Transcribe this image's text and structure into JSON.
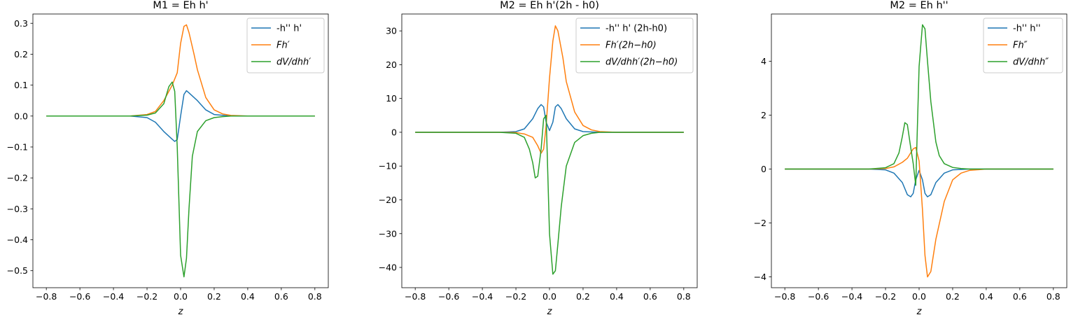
{
  "figure": {
    "background": "#ffffff"
  },
  "chart_data": [
    {
      "type": "line",
      "title": "M1 = Eh h'",
      "xlabel": "z",
      "ylabel": "",
      "xlim": [
        -0.88,
        0.88
      ],
      "ylim": [
        -0.555,
        0.33
      ],
      "xticks": [
        -0.8,
        -0.6,
        -0.4,
        -0.2,
        0.0,
        0.2,
        0.4,
        0.6,
        0.8
      ],
      "xtick_labels": [
        "−0.8",
        "−0.6",
        "−0.4",
        "−0.2",
        "0.0",
        "0.2",
        "0.4",
        "0.6",
        "0.8"
      ],
      "yticks": [
        -0.5,
        -0.4,
        -0.3,
        -0.2,
        -0.1,
        0.0,
        0.1,
        0.2,
        0.3
      ],
      "ytick_labels": [
        "−0.5",
        "−0.4",
        "−0.3",
        "−0.2",
        "−0.1",
        "0.0",
        "0.1",
        "0.2",
        "0.3"
      ],
      "grid": false,
      "legend": "top-right",
      "series": [
        {
          "name": "-h'' h'",
          "color": "#1f77b4",
          "x": [
            -0.8,
            -0.3,
            -0.2,
            -0.15,
            -0.1,
            -0.05,
            -0.035,
            -0.02,
            0.0,
            0.02,
            0.035,
            0.05,
            0.1,
            0.15,
            0.2,
            0.3,
            0.8
          ],
          "y": [
            0,
            0,
            -0.005,
            -0.02,
            -0.05,
            -0.075,
            -0.082,
            -0.076,
            0.0,
            0.07,
            0.082,
            0.075,
            0.05,
            0.02,
            0.005,
            0,
            0
          ]
        },
        {
          "name": "Fh′",
          "color": "#ff7f0e",
          "x": [
            -0.8,
            -0.3,
            -0.2,
            -0.15,
            -0.1,
            -0.05,
            -0.02,
            0.0,
            0.02,
            0.035,
            0.05,
            0.08,
            0.1,
            0.15,
            0.2,
            0.25,
            0.3,
            0.4,
            0.8
          ],
          "y": [
            0,
            0,
            0.005,
            0.015,
            0.05,
            0.1,
            0.14,
            0.235,
            0.29,
            0.295,
            0.27,
            0.2,
            0.15,
            0.06,
            0.02,
            0.007,
            0.002,
            0,
            0
          ]
        },
        {
          "name": "dV/dhh′",
          "color": "#2ca02c",
          "x": [
            -0.8,
            -0.3,
            -0.2,
            -0.15,
            -0.1,
            -0.07,
            -0.05,
            -0.035,
            -0.02,
            0.0,
            0.02,
            0.035,
            0.05,
            0.07,
            0.1,
            0.15,
            0.2,
            0.25,
            0.3,
            0.4,
            0.8
          ],
          "y": [
            0,
            0,
            0.003,
            0.01,
            0.04,
            0.095,
            0.11,
            0.08,
            -0.1,
            -0.45,
            -0.52,
            -0.46,
            -0.3,
            -0.13,
            -0.05,
            -0.015,
            -0.005,
            -0.002,
            0,
            0,
            0
          ]
        }
      ]
    },
    {
      "type": "line",
      "title": "M2 = Eh h'(2h - h0)",
      "xlabel": "z",
      "ylabel": "",
      "xlim": [
        -0.88,
        0.88
      ],
      "ylim": [
        -46,
        35
      ],
      "xticks": [
        -0.8,
        -0.6,
        -0.4,
        -0.2,
        0.0,
        0.2,
        0.4,
        0.6,
        0.8
      ],
      "xtick_labels": [
        "−0.8",
        "−0.6",
        "−0.4",
        "−0.2",
        "0.0",
        "0.2",
        "0.4",
        "0.6",
        "0.8"
      ],
      "yticks": [
        -40,
        -30,
        -20,
        -10,
        0,
        10,
        20,
        30
      ],
      "ytick_labels": [
        "−40",
        "−30",
        "−20",
        "−10",
        "0",
        "10",
        "20",
        "30"
      ],
      "grid": false,
      "legend": "top-right",
      "series": [
        {
          "name": "-h'' h' (2h-h0)",
          "color": "#1f77b4",
          "x": [
            -0.8,
            -0.3,
            -0.2,
            -0.15,
            -0.1,
            -0.07,
            -0.05,
            -0.035,
            -0.02,
            0.0,
            0.02,
            0.035,
            0.05,
            0.07,
            0.1,
            0.15,
            0.2,
            0.3,
            0.8
          ],
          "y": [
            0,
            0,
            0.2,
            1,
            4,
            7,
            8.2,
            7.5,
            3,
            0.5,
            3,
            7.5,
            8.2,
            7,
            4,
            1,
            0.2,
            0,
            0
          ]
        },
        {
          "name": "Fh′(2h−h0)",
          "color": "#ff7f0e",
          "x": [
            -0.8,
            -0.3,
            -0.2,
            -0.15,
            -0.1,
            -0.07,
            -0.05,
            -0.035,
            -0.02,
            0.0,
            0.02,
            0.035,
            0.05,
            0.08,
            0.1,
            0.15,
            0.2,
            0.25,
            0.3,
            0.4,
            0.8
          ],
          "y": [
            0,
            0,
            -0.1,
            -0.5,
            -1.5,
            -4,
            -6.2,
            -5,
            2,
            16,
            27,
            31.5,
            30,
            22,
            15,
            6,
            2,
            0.7,
            0.2,
            0,
            0
          ]
        },
        {
          "name": "dV/dhh′(2h−h0)",
          "color": "#2ca02c",
          "x": [
            -0.8,
            -0.3,
            -0.2,
            -0.15,
            -0.12,
            -0.1,
            -0.085,
            -0.07,
            -0.05,
            -0.035,
            -0.02,
            0.0,
            0.02,
            0.035,
            0.05,
            0.07,
            0.1,
            0.15,
            0.2,
            0.25,
            0.3,
            0.4,
            0.8
          ],
          "y": [
            0,
            0,
            -0.3,
            -1.5,
            -5,
            -9,
            -13.5,
            -13,
            -5,
            4,
            5,
            -30,
            -42,
            -41,
            -33,
            -22,
            -10,
            -3,
            -1,
            -0.3,
            0,
            0,
            0
          ]
        }
      ]
    },
    {
      "type": "line",
      "title": "M2 = Eh h''",
      "xlabel": "z",
      "ylabel": "",
      "xlim": [
        -0.88,
        0.88
      ],
      "ylim": [
        -4.4,
        5.75
      ],
      "xticks": [
        -0.8,
        -0.6,
        -0.4,
        -0.2,
        0.0,
        0.2,
        0.4,
        0.6,
        0.8
      ],
      "xtick_labels": [
        "−0.8",
        "−0.6",
        "−0.4",
        "−0.2",
        "0.0",
        "0.2",
        "0.4",
        "0.6",
        "0.8"
      ],
      "yticks": [
        -4,
        -2,
        0,
        2,
        4
      ],
      "ytick_labels": [
        "−4",
        "−2",
        "0",
        "2",
        "4"
      ],
      "grid": false,
      "legend": "top-right",
      "series": [
        {
          "name": "-h'' h''",
          "color": "#1f77b4",
          "x": [
            -0.8,
            -0.3,
            -0.2,
            -0.15,
            -0.1,
            -0.07,
            -0.05,
            -0.035,
            -0.02,
            0.0,
            0.02,
            0.035,
            0.05,
            0.07,
            0.1,
            0.15,
            0.2,
            0.3,
            0.8
          ],
          "y": [
            0,
            0,
            -0.03,
            -0.15,
            -0.5,
            -0.95,
            -1.03,
            -0.9,
            -0.4,
            -0.05,
            -0.4,
            -0.9,
            -1.03,
            -0.95,
            -0.5,
            -0.15,
            -0.03,
            0,
            0
          ]
        },
        {
          "name": "Fh″",
          "color": "#ff7f0e",
          "x": [
            -0.8,
            -0.3,
            -0.2,
            -0.15,
            -0.1,
            -0.07,
            -0.05,
            -0.035,
            -0.02,
            0.0,
            0.02,
            0.035,
            0.05,
            0.07,
            0.1,
            0.15,
            0.2,
            0.25,
            0.3,
            0.4,
            0.8
          ],
          "y": [
            0,
            0,
            0.02,
            0.08,
            0.25,
            0.4,
            0.6,
            0.75,
            0.8,
            0.3,
            -1.5,
            -3.2,
            -4.0,
            -3.8,
            -2.6,
            -1.2,
            -0.4,
            -0.15,
            -0.05,
            0,
            0
          ]
        },
        {
          "name": "dV/dhh″",
          "color": "#2ca02c",
          "x": [
            -0.8,
            -0.3,
            -0.2,
            -0.15,
            -0.12,
            -0.1,
            -0.085,
            -0.07,
            -0.05,
            -0.035,
            -0.02,
            0.0,
            0.02,
            0.035,
            0.05,
            0.07,
            0.1,
            0.12,
            0.15,
            0.2,
            0.25,
            0.3,
            0.4,
            0.8
          ],
          "y": [
            0,
            0,
            0.05,
            0.2,
            0.6,
            1.2,
            1.72,
            1.65,
            0.8,
            0.2,
            -0.6,
            3.8,
            5.35,
            5.2,
            4.0,
            2.5,
            1.0,
            0.5,
            0.2,
            0.06,
            0.02,
            0,
            0,
            0
          ]
        }
      ]
    }
  ]
}
